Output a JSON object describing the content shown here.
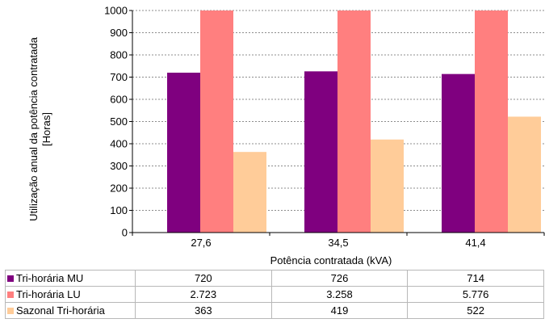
{
  "chart_data": {
    "type": "bar",
    "categories": [
      "27,6",
      "34,5",
      "41,4"
    ],
    "xlabel": "Potência contratada (kVA)",
    "ylabel": [
      "Utilização anual da potência contratada",
      "[Horas]"
    ],
    "ylim": [
      0,
      1000
    ],
    "yticks": [
      0,
      100,
      200,
      300,
      400,
      500,
      600,
      700,
      800,
      900,
      1000
    ],
    "grid": true,
    "legend": "table-below",
    "series": [
      {
        "name": "Tri-horária MU",
        "color": "#7f007f",
        "values": [
          720,
          726,
          714
        ],
        "labels": [
          "720",
          "726",
          "714"
        ]
      },
      {
        "name": "Tri-horária LU",
        "color": "#ff7f7f",
        "values": [
          2723,
          3258,
          5776
        ],
        "labels": [
          "2.723",
          "3.258",
          "5.776"
        ]
      },
      {
        "name": "Sazonal Tri-horária",
        "color": "#ffcc99",
        "values": [
          363,
          419,
          522
        ],
        "labels": [
          "363",
          "419",
          "522"
        ]
      }
    ]
  }
}
